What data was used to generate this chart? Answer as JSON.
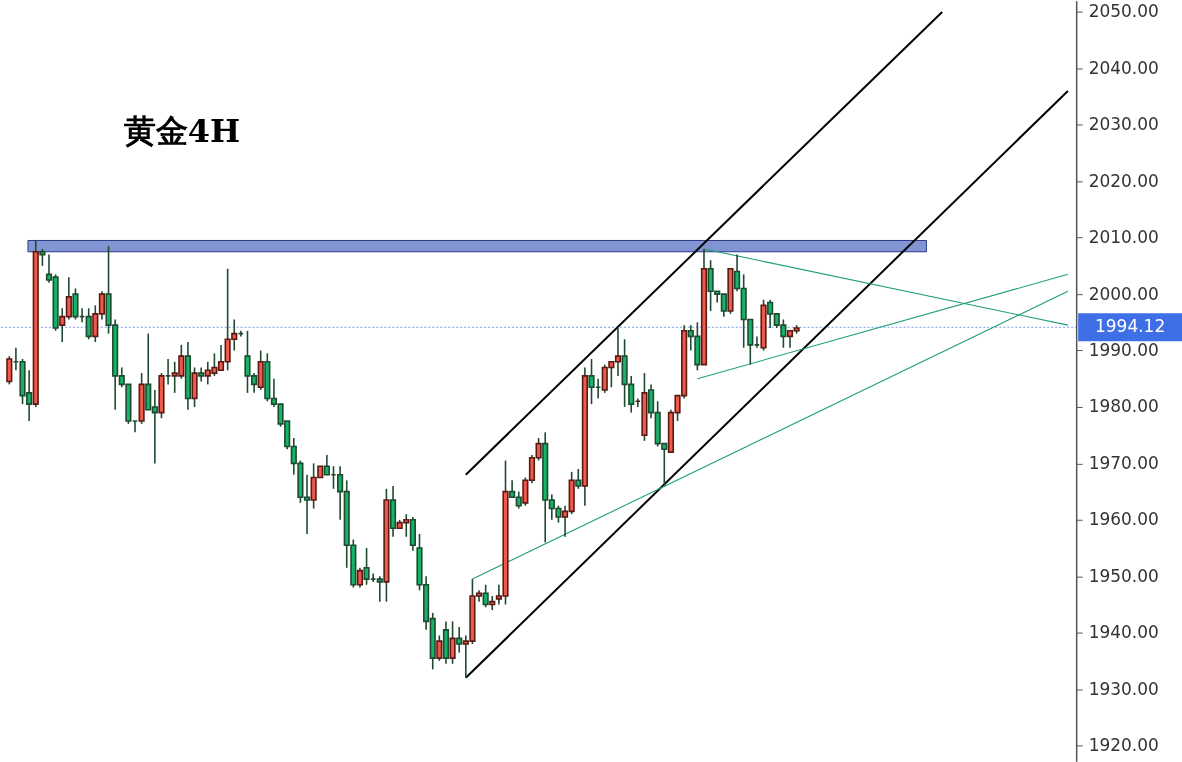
{
  "chart_data": {
    "type": "candlestick",
    "title": "黄金4H",
    "tick_labels": "y",
    "ylim": [
      1917.2,
      2052
    ],
    "yticks": [
      {
        "value": 1920,
        "label": "1920.00"
      },
      {
        "value": 1930,
        "label": "1930.00"
      },
      {
        "value": 1940,
        "label": "1940.00"
      },
      {
        "value": 1950,
        "label": "1950.00"
      },
      {
        "value": 1960,
        "label": "1960.00"
      },
      {
        "value": 1970,
        "label": "1970.00"
      },
      {
        "value": 1980,
        "label": "1980.00"
      },
      {
        "value": 1990,
        "label": "1990.00"
      },
      {
        "value": 2000,
        "label": "2000.00"
      },
      {
        "value": 2010,
        "label": "2010.00"
      },
      {
        "value": 2020,
        "label": "2020.00"
      },
      {
        "value": 2030,
        "label": "2030.00"
      },
      {
        "value": 2040,
        "label": "2040.00"
      },
      {
        "value": 2050,
        "label": "2050.00"
      }
    ],
    "categories": [
      null,
      null,
      null,
      null,
      null,
      null,
      null,
      null,
      null,
      null,
      null,
      null,
      null,
      null,
      null,
      null,
      null,
      null,
      null,
      null,
      null,
      null,
      null,
      null,
      null,
      null,
      null,
      null,
      null,
      null,
      null,
      null,
      null,
      null,
      null,
      null,
      null,
      null,
      null,
      null,
      null,
      null,
      null,
      null,
      null,
      null,
      null,
      null,
      null,
      null,
      null,
      null,
      null,
      null,
      null,
      null,
      null,
      null,
      null,
      null,
      null,
      null,
      null,
      null,
      null,
      null,
      null,
      null,
      null,
      null,
      null,
      null,
      null,
      null,
      null,
      null,
      null,
      null,
      null,
      null,
      null,
      null,
      null,
      null,
      null,
      null,
      null,
      null,
      null,
      null,
      null,
      null,
      null,
      null,
      null,
      null,
      null,
      null,
      null,
      null,
      null,
      null,
      null,
      null,
      null,
      null,
      null,
      null,
      null,
      null,
      null,
      null,
      null,
      null,
      null,
      null,
      null,
      null,
      null,
      null,
      null,
      null,
      null,
      null,
      null,
      null,
      null,
      null,
      null,
      null,
      null,
      null,
      null,
      null,
      null,
      null,
      null,
      null,
      null,
      null,
      null,
      null,
      null,
      null,
      null,
      null,
      null,
      null,
      null,
      null,
      null,
      null,
      null,
      null,
      null,
      null,
      null,
      null,
      null,
      null,
      null
    ],
    "ohlc": [
      [
        1984.5,
        1989,
        1984,
        1988.5
      ],
      [
        1988,
        1990.5,
        1986.5,
        1988
      ],
      [
        1988,
        1988.5,
        1980.5,
        1982
      ],
      [
        1982.5,
        1986.5,
        1977.5,
        1980.5
      ],
      [
        1980.5,
        2009.5,
        1980,
        2007.5
      ],
      [
        2007.5,
        2008,
        2005,
        2007
      ],
      [
        2003.5,
        2007,
        2002,
        2002.5
      ],
      [
        2003,
        2003.5,
        1993.5,
        1994
      ],
      [
        1994.5,
        1997.5,
        1991.5,
        1996
      ],
      [
        1996,
        2003,
        1995.5,
        1999.5
      ],
      [
        2000,
        2001,
        1995.5,
        1996
      ],
      [
        1996,
        1997.5,
        1995,
        1996
      ],
      [
        1996,
        1997.5,
        1992,
        1992.5
      ],
      [
        1992.5,
        1998,
        1991.5,
        1996.5
      ],
      [
        1996.5,
        2000.5,
        1995.5,
        2000
      ],
      [
        2000,
        2008.5,
        1993,
        1994.5
      ],
      [
        1994.5,
        1995.5,
        1979.5,
        1985.5
      ],
      [
        1985.5,
        1987,
        1983.5,
        1984
      ],
      [
        1984,
        1984,
        1977,
        1977.5
      ],
      [
        1977.5,
        1977.5,
        1975.5,
        1977.5
      ],
      [
        1977.5,
        1986,
        1977,
        1984
      ],
      [
        1984,
        1993,
        1979.5,
        1979.5
      ],
      [
        1980,
        1983,
        1970,
        1979
      ],
      [
        1979,
        1986,
        1978,
        1985.5
      ],
      [
        1985.5,
        1988.5,
        1984,
        1985.5
      ],
      [
        1985.5,
        1988,
        1982.5,
        1986
      ],
      [
        1985.5,
        1991,
        1985,
        1989
      ],
      [
        1989,
        1991.5,
        1979.5,
        1981.5
      ],
      [
        1981.5,
        1987,
        1980,
        1986
      ],
      [
        1986,
        1987,
        1984.5,
        1985.5
      ],
      [
        1985.5,
        1988,
        1984,
        1986.5
      ],
      [
        1986,
        1989.5,
        1985.5,
        1987
      ],
      [
        1986.5,
        1991,
        1986.5,
        1988
      ],
      [
        1988,
        2004.5,
        1986.5,
        1992
      ],
      [
        1992,
        1995.5,
        1990,
        1993
      ],
      [
        1993,
        1993.5,
        1992.5,
        1993
      ],
      [
        1989,
        1993.5,
        1982.5,
        1985.5
      ],
      [
        1985.5,
        1986,
        1982.5,
        1984
      ],
      [
        1983.5,
        1990,
        1983,
        1988
      ],
      [
        1988,
        1989.5,
        1981,
        1981.5
      ],
      [
        1981.5,
        1985,
        1980,
        1980.5
      ],
      [
        1980.5,
        1980.5,
        1976.5,
        1977
      ],
      [
        1977.5,
        1977.5,
        1972.5,
        1973
      ],
      [
        1973,
        1974.5,
        1968,
        1970
      ],
      [
        1970,
        1970.5,
        1963,
        1964
      ],
      [
        1964,
        1968,
        1957.5,
        1963.5
      ],
      [
        1963.5,
        1970,
        1962,
        1967.5
      ],
      [
        1967.5,
        1969.5,
        1967.5,
        1969.5
      ],
      [
        1969.5,
        1971.5,
        1968,
        1968
      ],
      [
        1968,
        1969.5,
        1965.5,
        1968
      ],
      [
        1968,
        1969.5,
        1960,
        1965
      ],
      [
        1965,
        1967,
        1951.5,
        1955.5
      ],
      [
        1955.5,
        1956.5,
        1948,
        1948.5
      ],
      [
        1948.5,
        1951.5,
        1948,
        1951
      ],
      [
        1951.5,
        1955,
        1948.5,
        1949.5
      ],
      [
        1949.5,
        1950.5,
        1949,
        1949.5
      ],
      [
        1949.5,
        1950,
        1945.5,
        1949
      ],
      [
        1949,
        1965.5,
        1945.5,
        1963.5
      ],
      [
        1963.5,
        1966,
        1957,
        1958.5
      ],
      [
        1958.5,
        1960,
        1958.5,
        1959.5
      ],
      [
        1959.5,
        1961,
        1957,
        1960
      ],
      [
        1960,
        1960.5,
        1954.5,
        1955.5
      ],
      [
        1955,
        1957.5,
        1947.5,
        1948.5
      ],
      [
        1948.5,
        1950,
        1940.5,
        1942
      ],
      [
        1942.5,
        1943.5,
        1933.5,
        1935.5
      ],
      [
        1935.5,
        1939.5,
        1935,
        1938.5
      ],
      [
        1940.5,
        1942,
        1934.5,
        1935.5
      ],
      [
        1935.5,
        1942,
        1934.5,
        1939
      ],
      [
        1939,
        1941,
        1936.5,
        1938
      ],
      [
        1938,
        1939.5,
        1932,
        1938.5
      ],
      [
        1938.5,
        1949.5,
        1938,
        1946.5
      ],
      [
        1946.5,
        1947.5,
        1945.5,
        1947
      ],
      [
        1947,
        1948.5,
        1944.5,
        1945
      ],
      [
        1945,
        1946.5,
        1944,
        1945.5
      ],
      [
        1946,
        1948.5,
        1945,
        1946.5
      ],
      [
        1946.5,
        1970.5,
        1945,
        1965
      ],
      [
        1965,
        1967,
        1964,
        1964
      ],
      [
        1964,
        1965,
        1962,
        1962.5
      ],
      [
        1963,
        1967.5,
        1962.5,
        1967
      ],
      [
        1967,
        1971.5,
        1966.5,
        1971
      ],
      [
        1971,
        1974.5,
        1970.5,
        1973.5
      ],
      [
        1973.5,
        1975.5,
        1956,
        1963.5
      ],
      [
        1963.5,
        1964.5,
        1960,
        1962
      ],
      [
        1962,
        1962.5,
        1959.5,
        1960.5
      ],
      [
        1960.5,
        1962.5,
        1957,
        1961.5
      ],
      [
        1961.5,
        1968.5,
        1961,
        1967
      ],
      [
        1967,
        1969,
        1965.5,
        1966
      ],
      [
        1966,
        1987,
        1962.5,
        1985.5
      ],
      [
        1985.5,
        1988.5,
        1980.5,
        1983.5
      ],
      [
        1983.5,
        1985,
        1981.5,
        1983.5
      ],
      [
        1983,
        1987.5,
        1982.5,
        1987
      ],
      [
        1987,
        1988,
        1983.5,
        1988
      ],
      [
        1988,
        1994,
        1985.5,
        1989
      ],
      [
        1989,
        1992,
        1980,
        1984
      ],
      [
        1984,
        1985.5,
        1979,
        1980.5
      ],
      [
        1981,
        1981.5,
        1980,
        1981
      ],
      [
        1975,
        1986,
        1974,
        1982.5
      ],
      [
        1983,
        1984,
        1978,
        1979
      ],
      [
        1979,
        1981,
        1973,
        1973.5
      ],
      [
        1973.5,
        1973.5,
        1966,
        1972.5
      ],
      [
        1972,
        1979.5,
        1972,
        1979
      ],
      [
        1979,
        1982,
        1977.5,
        1982
      ],
      [
        1982,
        1994.5,
        1981.5,
        1993.5
      ],
      [
        1993.5,
        1994.5,
        1990,
        1992.5
      ],
      [
        1992.5,
        1995,
        1986.5,
        1987.5
      ],
      [
        1987.5,
        2008,
        1987.5,
        2004.5
      ],
      [
        2004.5,
        2006,
        1997,
        2000.5
      ],
      [
        2000.5,
        2000.5,
        1998.5,
        2000
      ],
      [
        2000,
        2000,
        1996,
        1997
      ],
      [
        1997,
        2004.5,
        1996.5,
        2004.5
      ],
      [
        2004,
        2007,
        2000.5,
        2001
      ],
      [
        2001,
        2003.5,
        1990.5,
        1995.5
      ],
      [
        1995.5,
        1995.5,
        1987.5,
        1991
      ],
      [
        1991,
        1992.5,
        1990.5,
        1991
      ],
      [
        1990.5,
        1999,
        1990,
        1998
      ],
      [
        1998.5,
        1999,
        1994,
        1996.5
      ],
      [
        1996.5,
        1996.5,
        1994,
        1994.5
      ],
      [
        1994.5,
        1995.5,
        1990.5,
        1992.5
      ],
      [
        1992.5,
        1993.5,
        1990.5,
        1993.5
      ],
      [
        1993.5,
        1994.5,
        1993,
        1994
      ],
      null,
      null,
      null,
      null,
      null,
      null,
      null,
      null,
      null,
      null,
      null,
      null,
      null,
      null,
      null,
      null,
      null,
      null,
      null,
      null,
      null,
      null,
      null,
      null,
      null,
      null,
      null,
      null,
      null,
      null,
      null,
      null,
      null,
      null,
      null,
      null,
      null,
      null,
      null,
      null,
      null
    ],
    "colors": [
      "#ef5a4b",
      "#1e4a30",
      "#16b368",
      "#16b368",
      "#ef5a4b",
      "#16b368",
      "#16b368",
      "#16b368",
      "#ef5a4b",
      "#ef5a4b",
      "#16b368",
      "#1e4a30",
      "#16b368",
      "#ef5a4b",
      "#ef5a4b",
      "#16b368",
      "#16b368",
      "#16b368",
      "#16b368",
      "#1e4a30",
      "#ef5a4b",
      "#16b368",
      "#16b368",
      "#ef5a4b",
      "#1e4a30",
      "#ef5a4b",
      "#ef5a4b",
      "#16b368",
      "#ef5a4b",
      "#16b368",
      "#ef5a4b",
      "#ef5a4b",
      "#ef5a4b",
      "#ef5a4b",
      "#ef5a4b",
      "#1e4a30",
      "#16b368",
      "#16b368",
      "#ef5a4b",
      "#16b368",
      "#16b368",
      "#16b368",
      "#16b368",
      "#16b368",
      "#16b368",
      "#16b368",
      "#ef5a4b",
      "#ef5a4b",
      "#16b368",
      "#1e4a30",
      "#16b368",
      "#16b368",
      "#16b368",
      "#ef5a4b",
      "#16b368",
      "#1e4a30",
      "#16b368",
      "#ef5a4b",
      "#16b368",
      "#ef5a4b",
      "#ef5a4b",
      "#16b368",
      "#16b368",
      "#16b368",
      "#16b368",
      "#ef5a4b",
      "#16b368",
      "#ef5a4b",
      "#16b368",
      "#ef5a4b",
      "#ef5a4b",
      "#ef5a4b",
      "#16b368",
      "#ef5a4b",
      "#ef5a4b",
      "#ef5a4b",
      "#16b368",
      "#16b368",
      "#ef5a4b",
      "#ef5a4b",
      "#ef5a4b",
      "#16b368",
      "#16b368",
      "#16b368",
      "#ef5a4b",
      "#ef5a4b",
      "#16b368",
      "#ef5a4b",
      "#16b368",
      "#1e4a30",
      "#ef5a4b",
      "#ef5a4b",
      "#ef5a4b",
      "#16b368",
      "#16b368",
      "#5a1a14",
      "#ef5a4b",
      "#16b368",
      "#16b368",
      "#16b368",
      "#ef5a4b",
      "#ef5a4b",
      "#ef5a4b",
      "#16b368",
      "#16b368",
      "#ef5a4b",
      "#16b368",
      "#16b368",
      "#16b368",
      "#ef5a4b",
      "#16b368",
      "#16b368",
      "#16b368",
      "#1e4a30",
      "#ef5a4b",
      "#16b368",
      "#16b368",
      "#16b368",
      "#ef5a4b",
      "#ef5a4b",
      null,
      null,
      null,
      null,
      null,
      null,
      null,
      null,
      null,
      null,
      null,
      null,
      null,
      null,
      null,
      null,
      null,
      null,
      null,
      null,
      null,
      null,
      null,
      null,
      null,
      null,
      null,
      null,
      null,
      null,
      null,
      null,
      null,
      null,
      null,
      null,
      null,
      null,
      null,
      null,
      null
    ],
    "series": [
      {
        "type": "line",
        "color": "#000000",
        "values": [
          null,
          null,
          null,
          null,
          null,
          null,
          null,
          null,
          null,
          null,
          null,
          null,
          null,
          null,
          null,
          null,
          null,
          null,
          null,
          null,
          null,
          null,
          null,
          null,
          null,
          null,
          null,
          null,
          null,
          null,
          null,
          null,
          null,
          null,
          null,
          null,
          null,
          null,
          null,
          null,
          null,
          null,
          null,
          null,
          null,
          null,
          null,
          null,
          null,
          null,
          null,
          null,
          null,
          null,
          null,
          null,
          null,
          null,
          null,
          null,
          null,
          null,
          null,
          null,
          null,
          null,
          null,
          null,
          null,
          1968,
          null,
          null,
          null,
          null,
          null,
          null,
          null,
          null,
          null,
          null,
          null,
          null,
          null,
          null,
          null,
          null,
          null,
          null,
          null,
          null,
          null,
          null,
          null,
          null,
          null,
          null,
          null,
          null,
          null,
          null,
          null,
          null,
          null,
          null,
          null,
          null,
          null,
          null,
          null,
          null,
          null,
          null,
          null,
          null,
          null,
          null,
          null,
          null,
          null,
          null,
          null,
          null,
          null,
          null,
          null,
          null,
          null,
          null,
          null,
          null,
          null,
          null,
          null,
          null,
          null,
          null,
          null,
          null,
          null,
          null,
          null,
          2050,
          null,
          null,
          null,
          null,
          null,
          null,
          null,
          null,
          null,
          null,
          null,
          null,
          null,
          null,
          null,
          null,
          null,
          null,
          null
        ]
      },
      {
        "type": "line",
        "color": "#000000",
        "values": [
          null,
          null,
          null,
          null,
          null,
          null,
          null,
          null,
          null,
          null,
          null,
          null,
          null,
          null,
          null,
          null,
          null,
          null,
          null,
          null,
          null,
          null,
          null,
          null,
          null,
          null,
          null,
          null,
          null,
          null,
          null,
          null,
          null,
          null,
          null,
          null,
          null,
          null,
          null,
          null,
          null,
          null,
          null,
          null,
          null,
          null,
          null,
          null,
          null,
          null,
          null,
          null,
          null,
          null,
          null,
          null,
          null,
          null,
          null,
          null,
          null,
          null,
          null,
          null,
          null,
          null,
          null,
          null,
          null,
          1932,
          null,
          null,
          null,
          null,
          null,
          null,
          null,
          null,
          null,
          null,
          null,
          null,
          null,
          null,
          null,
          null,
          null,
          null,
          null,
          null,
          null,
          null,
          null,
          null,
          null,
          null,
          null,
          null,
          null,
          null,
          null,
          null,
          null,
          null,
          null,
          null,
          null,
          null,
          null,
          null,
          null,
          null,
          null,
          null,
          null,
          null,
          null,
          null,
          null,
          null,
          null,
          null,
          null,
          null,
          null,
          null,
          null,
          null,
          null,
          null,
          null,
          null,
          null,
          null,
          null,
          null,
          null,
          null,
          null,
          null,
          null,
          null,
          null,
          null,
          null,
          null,
          null,
          null,
          null,
          null,
          null,
          null,
          null,
          null,
          null,
          null,
          null,
          null,
          null,
          null,
          2036
        ]
      },
      {
        "type": "line",
        "color": "#1f9e7a",
        "values": [
          null,
          null,
          null,
          null,
          null,
          null,
          null,
          null,
          null,
          null,
          null,
          null,
          null,
          null,
          null,
          null,
          null,
          null,
          null,
          null,
          null,
          null,
          null,
          null,
          null,
          null,
          null,
          null,
          null,
          null,
          null,
          null,
          null,
          null,
          null,
          null,
          null,
          null,
          null,
          null,
          null,
          null,
          null,
          null,
          null,
          null,
          null,
          null,
          null,
          null,
          null,
          null,
          null,
          null,
          null,
          null,
          null,
          null,
          null,
          null,
          null,
          null,
          null,
          null,
          null,
          null,
          null,
          null,
          null,
          null,
          1949.5,
          null,
          null,
          null,
          null,
          null,
          null,
          null,
          null,
          null,
          null,
          null,
          null,
          null,
          null,
          null,
          null,
          null,
          null,
          null,
          null,
          null,
          null,
          null,
          null,
          null,
          null,
          null,
          null,
          null,
          null,
          null,
          null,
          null,
          null,
          null,
          null,
          null,
          null,
          null,
          null,
          null,
          null,
          null,
          null,
          null,
          null,
          null,
          null,
          null,
          null,
          null,
          null,
          null,
          null,
          null,
          null,
          null,
          null,
          null,
          null,
          null,
          null,
          null,
          null,
          null,
          null,
          null,
          null,
          null,
          null,
          null,
          null,
          null,
          null,
          null,
          null,
          null,
          null,
          null,
          null,
          null,
          null,
          null,
          null,
          null,
          null,
          null,
          null,
          null,
          2000.5
        ]
      },
      {
        "type": "line",
        "color": "#1f9e7a",
        "values": [
          null,
          null,
          null,
          null,
          null,
          null,
          null,
          null,
          null,
          null,
          null,
          null,
          null,
          null,
          null,
          null,
          null,
          null,
          null,
          null,
          null,
          null,
          null,
          null,
          null,
          null,
          null,
          null,
          null,
          null,
          null,
          null,
          null,
          null,
          null,
          null,
          null,
          null,
          null,
          null,
          null,
          null,
          null,
          null,
          null,
          null,
          null,
          null,
          null,
          null,
          null,
          null,
          null,
          null,
          null,
          null,
          null,
          null,
          null,
          null,
          null,
          null,
          null,
          null,
          null,
          null,
          null,
          null,
          null,
          null,
          null,
          null,
          null,
          null,
          null,
          null,
          null,
          null,
          null,
          null,
          null,
          null,
          null,
          null,
          null,
          null,
          null,
          null,
          null,
          null,
          null,
          null,
          null,
          null,
          null,
          null,
          null,
          null,
          null,
          null,
          null,
          null,
          null,
          null,
          1985,
          null,
          null,
          null,
          null,
          null,
          null,
          null,
          null,
          null,
          null,
          null,
          null,
          null,
          null,
          null,
          null,
          null,
          null,
          null,
          null,
          null,
          null,
          null,
          null,
          null,
          null,
          null,
          null,
          null,
          null,
          null,
          null,
          null,
          null,
          null,
          null,
          null,
          null,
          null,
          null,
          null,
          null,
          null,
          null,
          null,
          null,
          null,
          null,
          null,
          null,
          null,
          null,
          null,
          null,
          null,
          2003.5
        ]
      },
      {
        "type": "line",
        "color": "#1f9e7a",
        "values": [
          null,
          null,
          null,
          null,
          null,
          null,
          null,
          null,
          null,
          null,
          null,
          null,
          null,
          null,
          null,
          null,
          null,
          null,
          null,
          null,
          null,
          null,
          null,
          null,
          null,
          null,
          null,
          null,
          null,
          null,
          null,
          null,
          null,
          null,
          null,
          null,
          null,
          null,
          null,
          null,
          null,
          null,
          null,
          null,
          null,
          null,
          null,
          null,
          null,
          null,
          null,
          null,
          null,
          null,
          null,
          null,
          null,
          null,
          null,
          null,
          null,
          null,
          null,
          null,
          null,
          null,
          null,
          null,
          null,
          null,
          null,
          null,
          null,
          null,
          null,
          null,
          null,
          null,
          null,
          null,
          null,
          null,
          null,
          null,
          null,
          null,
          null,
          null,
          null,
          null,
          null,
          null,
          null,
          null,
          null,
          null,
          null,
          null,
          null,
          null,
          null,
          null,
          null,
          null,
          null,
          2008,
          null,
          null,
          null,
          null,
          null,
          null,
          null,
          null,
          null,
          null,
          null,
          null,
          null,
          null,
          null,
          null,
          null,
          null,
          null,
          null,
          null,
          null,
          null,
          null,
          null,
          null,
          null,
          null,
          null,
          null,
          null,
          null,
          null,
          null,
          null,
          null,
          null,
          null,
          null,
          null,
          null,
          null,
          null,
          null,
          null,
          null,
          null,
          null,
          null,
          null,
          null,
          null,
          null,
          null,
          1994.5
        ]
      }
    ],
    "bands": [
      {
        "axis": "y",
        "from": 2007.5,
        "to": 2009.5,
        "color": "#7d8fd0"
      }
    ],
    "ref_lines": [
      {
        "axis": "y",
        "value": 1994.12,
        "label": "1994.12",
        "color": "#3e6fe6",
        "line_style": "dotted"
      }
    ]
  }
}
